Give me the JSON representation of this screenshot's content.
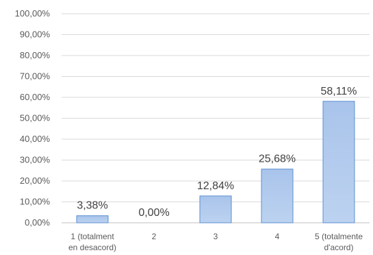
{
  "chart_data": {
    "type": "bar",
    "categories": [
      [
        "1 (totalment",
        "en desacord)"
      ],
      [
        "2"
      ],
      [
        "3"
      ],
      [
        "4"
      ],
      [
        "5 (totalmente",
        "d'acord)"
      ]
    ],
    "values": [
      3.38,
      0.0,
      12.84,
      25.68,
      58.11
    ],
    "data_labels": [
      "3,38%",
      "0,00%",
      "12,84%",
      "25,68%",
      "58,11%"
    ],
    "y_ticks": [
      "0,00%",
      "10,00%",
      "20,00%",
      "30,00%",
      "40,00%",
      "50,00%",
      "60,00%",
      "70,00%",
      "80,00%",
      "90,00%",
      "100,00%"
    ],
    "ylim": [
      0,
      100
    ],
    "grid": true,
    "bar_color": "#a9c4eb",
    "bar_edge_color": "#5b8fd0"
  }
}
